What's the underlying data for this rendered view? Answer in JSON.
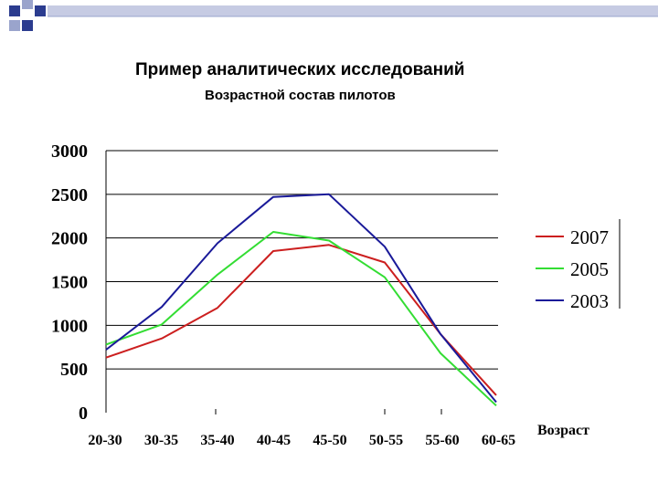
{
  "slide": {
    "title": "Пример аналитических исследований",
    "subtitle": "Возрастной состав пилотов"
  },
  "colors": {
    "deco_dark": "#2b3c8f",
    "deco_light": "#9aa4cc",
    "grid": "#000000"
  },
  "chart_data": {
    "type": "line",
    "title": "",
    "xlabel": "Возраст",
    "ylabel": "",
    "categories": [
      "20-30",
      "30-35",
      "35-40",
      "40-45",
      "45-50",
      "50-55",
      "55-60",
      "60-65"
    ],
    "ylim": [
      0,
      3000
    ],
    "yticks": [
      0,
      500,
      1000,
      1500,
      2000,
      2500,
      3000
    ],
    "grid": "horizontal",
    "legend_position": "right",
    "series": [
      {
        "name": "2007",
        "color": "#cc1f1f",
        "values": [
          630,
          850,
          1200,
          1850,
          1920,
          1720,
          900,
          200
        ]
      },
      {
        "name": "2005",
        "color": "#33dd33",
        "values": [
          780,
          1010,
          1580,
          2070,
          1970,
          1550,
          680,
          80
        ]
      },
      {
        "name": "2003",
        "color": "#1a1a99",
        "values": [
          720,
          1210,
          1940,
          2470,
          2500,
          1900,
          900,
          120
        ]
      }
    ]
  }
}
